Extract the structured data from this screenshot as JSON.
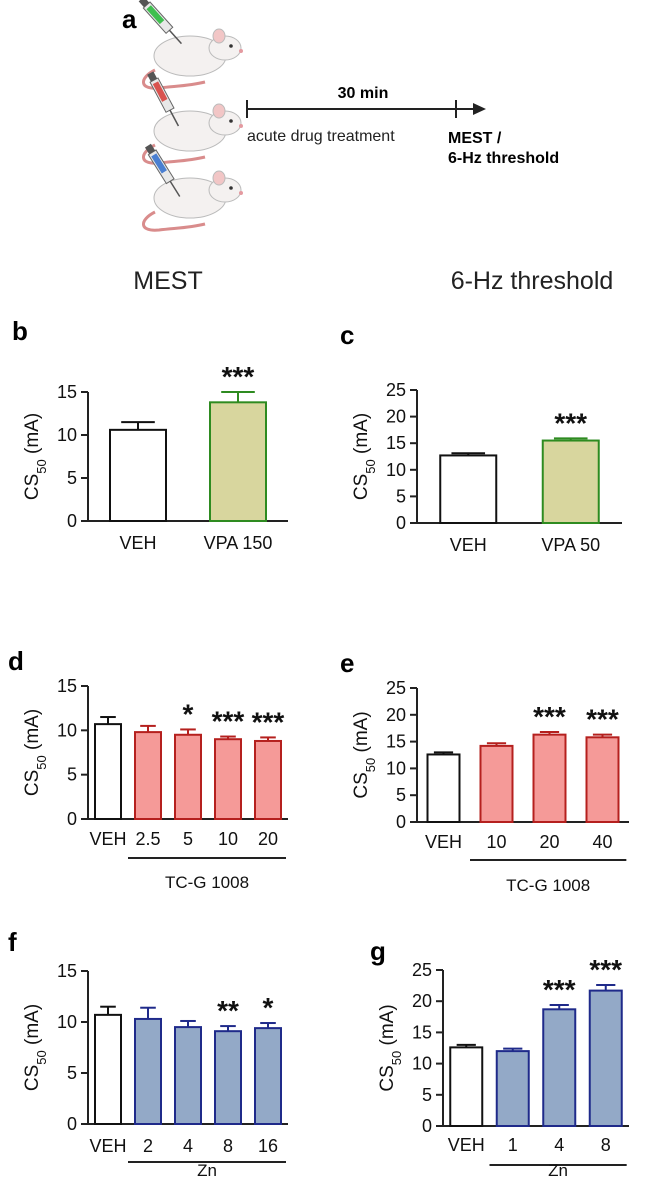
{
  "colors": {
    "vehicle_fill": "#ffffff",
    "vehicle_edge": "#111111",
    "vpa_fill": "#d8d69e",
    "vpa_edge": "#2e8b20",
    "tcg_fill": "#f59a98",
    "tcg_edge": "#b5201e",
    "zn_fill": "#93a9c7",
    "zn_edge": "#1f2a8a"
  },
  "panel_a": {
    "letter": "a",
    "timeline_duration": "30 min",
    "start_label": "acute drug treatment",
    "end_label_line1": "MEST /",
    "end_label_line2": "6-Hz threshold",
    "syringe_colors": [
      "#3fbf4f",
      "#d9534f",
      "#4a7fd1"
    ]
  },
  "section_headers": {
    "left": "MEST",
    "right": "6-Hz threshold"
  },
  "ylabel": {
    "main": "CS",
    "sub": "50",
    "unit": " (mA)"
  },
  "chart_data": [
    {
      "id": "b",
      "letter": "b",
      "type": "bar",
      "title": "MEST",
      "categories": [
        "VEH",
        "VPA 150"
      ],
      "values": [
        10.6,
        13.8
      ],
      "errors": [
        0.9,
        1.2
      ],
      "significance": [
        "",
        "***"
      ],
      "fill_keys": [
        "vehicle_fill",
        "vpa_fill"
      ],
      "edge_keys": [
        "vehicle_edge",
        "vpa_edge"
      ],
      "ylim": [
        0,
        15
      ],
      "yticks": [
        0,
        5,
        10,
        15
      ],
      "group_label": "",
      "ylabel": "CS50 (mA)"
    },
    {
      "id": "c",
      "letter": "c",
      "type": "bar",
      "title": "6-Hz threshold",
      "categories": [
        "VEH",
        "VPA 50"
      ],
      "values": [
        12.7,
        15.5
      ],
      "errors": [
        0.4,
        0.4
      ],
      "significance": [
        "",
        "***"
      ],
      "fill_keys": [
        "vehicle_fill",
        "vpa_fill"
      ],
      "edge_keys": [
        "vehicle_edge",
        "vpa_edge"
      ],
      "ylim": [
        0,
        25
      ],
      "yticks": [
        0,
        5,
        10,
        15,
        20,
        25
      ],
      "group_label": "",
      "ylabel": "CS50 (mA)"
    },
    {
      "id": "d",
      "letter": "d",
      "type": "bar",
      "title": "MEST",
      "categories": [
        "VEH",
        "2.5",
        "5",
        "10",
        "20"
      ],
      "values": [
        10.7,
        9.8,
        9.5,
        9.0,
        8.8
      ],
      "errors": [
        0.8,
        0.7,
        0.6,
        0.3,
        0.4
      ],
      "significance": [
        "",
        "",
        "*",
        "***",
        "***"
      ],
      "fill_keys": [
        "vehicle_fill",
        "tcg_fill",
        "tcg_fill",
        "tcg_fill",
        "tcg_fill"
      ],
      "edge_keys": [
        "vehicle_edge",
        "tcg_edge",
        "tcg_edge",
        "tcg_edge",
        "tcg_edge"
      ],
      "ylim": [
        0,
        15
      ],
      "yticks": [
        0,
        5,
        10,
        15
      ],
      "group_label": "TC-G 1008",
      "group_start": 1,
      "group_end": 4,
      "ylabel": "CS50 (mA)"
    },
    {
      "id": "e",
      "letter": "e",
      "type": "bar",
      "title": "6-Hz threshold",
      "categories": [
        "VEH",
        "10",
        "20",
        "40"
      ],
      "values": [
        12.6,
        14.2,
        16.3,
        15.8
      ],
      "errors": [
        0.4,
        0.5,
        0.5,
        0.5
      ],
      "significance": [
        "",
        "",
        "***",
        "***"
      ],
      "fill_keys": [
        "vehicle_fill",
        "tcg_fill",
        "tcg_fill",
        "tcg_fill"
      ],
      "edge_keys": [
        "vehicle_edge",
        "tcg_edge",
        "tcg_edge",
        "tcg_edge"
      ],
      "ylim": [
        0,
        25
      ],
      "yticks": [
        0,
        5,
        10,
        15,
        20,
        25
      ],
      "group_label": "TC-G 1008",
      "group_start": 1,
      "group_end": 3,
      "ylabel": "CS50 (mA)"
    },
    {
      "id": "f",
      "letter": "f",
      "type": "bar",
      "title": "MEST",
      "categories": [
        "VEH",
        "2",
        "4",
        "8",
        "16"
      ],
      "values": [
        10.7,
        10.3,
        9.5,
        9.1,
        9.4
      ],
      "errors": [
        0.8,
        1.1,
        0.6,
        0.5,
        0.5
      ],
      "significance": [
        "",
        "",
        "",
        "**",
        "*"
      ],
      "fill_keys": [
        "vehicle_fill",
        "zn_fill",
        "zn_fill",
        "zn_fill",
        "zn_fill"
      ],
      "edge_keys": [
        "vehicle_edge",
        "zn_edge",
        "zn_edge",
        "zn_edge",
        "zn_edge"
      ],
      "ylim": [
        0,
        15
      ],
      "yticks": [
        0,
        5,
        10,
        15
      ],
      "group_label": "Zn",
      "group_start": 1,
      "group_end": 4,
      "ylabel": "CS50 (mA)"
    },
    {
      "id": "g",
      "letter": "g",
      "type": "bar",
      "title": "6-Hz threshold",
      "categories": [
        "VEH",
        "1",
        "4",
        "8"
      ],
      "values": [
        12.6,
        12.0,
        18.7,
        21.7
      ],
      "errors": [
        0.4,
        0.4,
        0.7,
        0.9
      ],
      "significance": [
        "",
        "",
        "***",
        "***"
      ],
      "fill_keys": [
        "vehicle_fill",
        "zn_fill",
        "zn_fill",
        "zn_fill"
      ],
      "edge_keys": [
        "vehicle_edge",
        "zn_edge",
        "zn_edge",
        "zn_edge"
      ],
      "ylim": [
        0,
        25
      ],
      "yticks": [
        0,
        5,
        10,
        15,
        20,
        25
      ],
      "group_label": "Zn",
      "group_start": 1,
      "group_end": 3,
      "ylabel": "CS50 (mA)"
    }
  ]
}
